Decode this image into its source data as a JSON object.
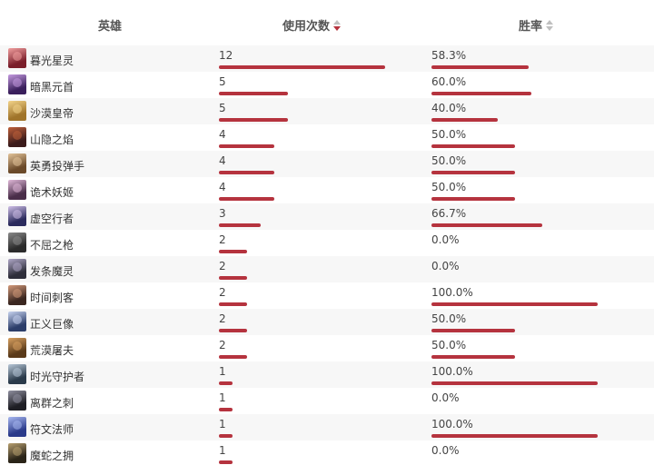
{
  "header": {
    "hero_label": "英雄",
    "uses_label": "使用次数",
    "rate_label": "胜率"
  },
  "colors": {
    "bar": "#b5333e"
  },
  "max_uses": 12,
  "rows": [
    {
      "name": "暮光星灵",
      "uses": "12",
      "rate": "58.3%",
      "avatar_colors": [
        "#7a1e2a",
        "#f2a0a0"
      ]
    },
    {
      "name": "暗黑元首",
      "uses": "5",
      "rate": "60.0%",
      "avatar_colors": [
        "#3a1f5c",
        "#c59be0"
      ]
    },
    {
      "name": "沙漠皇帝",
      "uses": "5",
      "rate": "40.0%",
      "avatar_colors": [
        "#a0742a",
        "#f3d48a"
      ]
    },
    {
      "name": "山隐之焰",
      "uses": "4",
      "rate": "50.0%",
      "avatar_colors": [
        "#3b1b1b",
        "#c0603a"
      ]
    },
    {
      "name": "英勇投弹手",
      "uses": "4",
      "rate": "50.0%",
      "avatar_colors": [
        "#6b4a2a",
        "#e3c49a"
      ]
    },
    {
      "name": "诡术妖姬",
      "uses": "4",
      "rate": "50.0%",
      "avatar_colors": [
        "#4a2e4a",
        "#e0b8d8"
      ]
    },
    {
      "name": "虚空行者",
      "uses": "3",
      "rate": "66.7%",
      "avatar_colors": [
        "#2a2a5c",
        "#d0c0e8"
      ]
    },
    {
      "name": "不屈之枪",
      "uses": "2",
      "rate": "0.0%",
      "avatar_colors": [
        "#2b2b2b",
        "#8a8a8a"
      ]
    },
    {
      "name": "发条魔灵",
      "uses": "2",
      "rate": "0.0%",
      "avatar_colors": [
        "#2e2e3a",
        "#b0a8c8"
      ]
    },
    {
      "name": "时间刺客",
      "uses": "2",
      "rate": "100.0%",
      "avatar_colors": [
        "#3a2620",
        "#d49a7a"
      ]
    },
    {
      "name": "正义巨像",
      "uses": "2",
      "rate": "50.0%",
      "avatar_colors": [
        "#2c3e6a",
        "#c8d4f0"
      ]
    },
    {
      "name": "荒漠屠夫",
      "uses": "2",
      "rate": "50.0%",
      "avatar_colors": [
        "#5a3a1a",
        "#d8a060"
      ]
    },
    {
      "name": "时光守护者",
      "uses": "1",
      "rate": "100.0%",
      "avatar_colors": [
        "#2a3a4a",
        "#b8c8d8"
      ]
    },
    {
      "name": "离群之刺",
      "uses": "1",
      "rate": "0.0%",
      "avatar_colors": [
        "#1e1e24",
        "#9090a0"
      ]
    },
    {
      "name": "符文法师",
      "uses": "1",
      "rate": "100.0%",
      "avatar_colors": [
        "#2a3a8a",
        "#a8b8f0"
      ]
    },
    {
      "name": "魔蛇之拥",
      "uses": "1",
      "rate": "0.0%",
      "avatar_colors": [
        "#2a2418",
        "#b8a070"
      ]
    }
  ]
}
